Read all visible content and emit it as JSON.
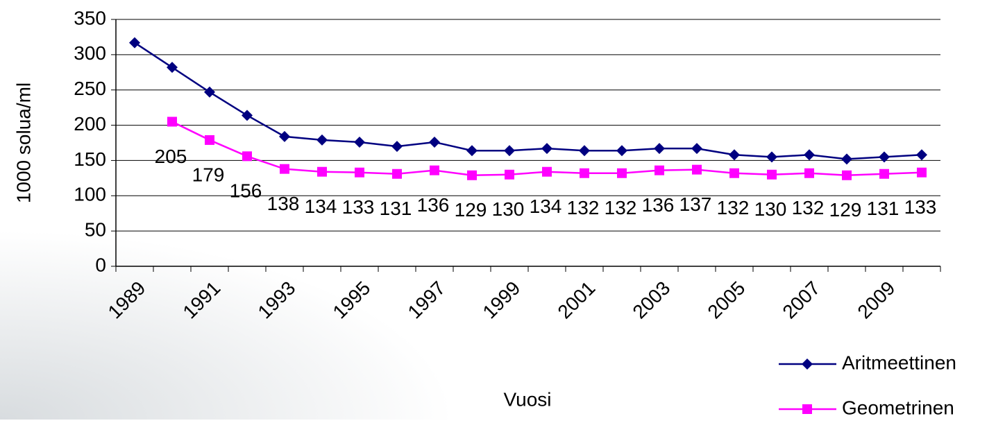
{
  "chart_data": {
    "type": "line",
    "xlabel": "Vuosi",
    "ylabel": "1000 solua/ml",
    "categories": [
      "1989",
      null,
      "1991",
      null,
      "1993",
      null,
      "1995",
      null,
      "1997",
      null,
      "1999",
      null,
      "2001",
      null,
      "2003",
      null,
      "2005",
      null,
      "2007",
      null,
      "2009",
      null
    ],
    "series": [
      {
        "name": "Aritmeettinen",
        "color": "#000080",
        "marker": "diamond",
        "values": [
          317,
          282,
          247,
          214,
          184,
          179,
          176,
          170,
          176,
          164,
          164,
          167,
          164,
          164,
          167,
          167,
          158,
          155,
          158,
          152,
          155,
          158
        ]
      },
      {
        "name": "Geometrinen",
        "color": "#ff00ff",
        "marker": "square",
        "data_labels": true,
        "values": [
          null,
          205,
          179,
          156,
          138,
          134,
          133,
          131,
          136,
          129,
          130,
          134,
          132,
          132,
          136,
          137,
          132,
          130,
          132,
          129,
          131,
          133
        ]
      }
    ],
    "ylim": [
      0,
      350
    ],
    "yticks": [
      0,
      50,
      100,
      150,
      200,
      250,
      300,
      350
    ],
    "grid": true,
    "legend": "lower right"
  }
}
